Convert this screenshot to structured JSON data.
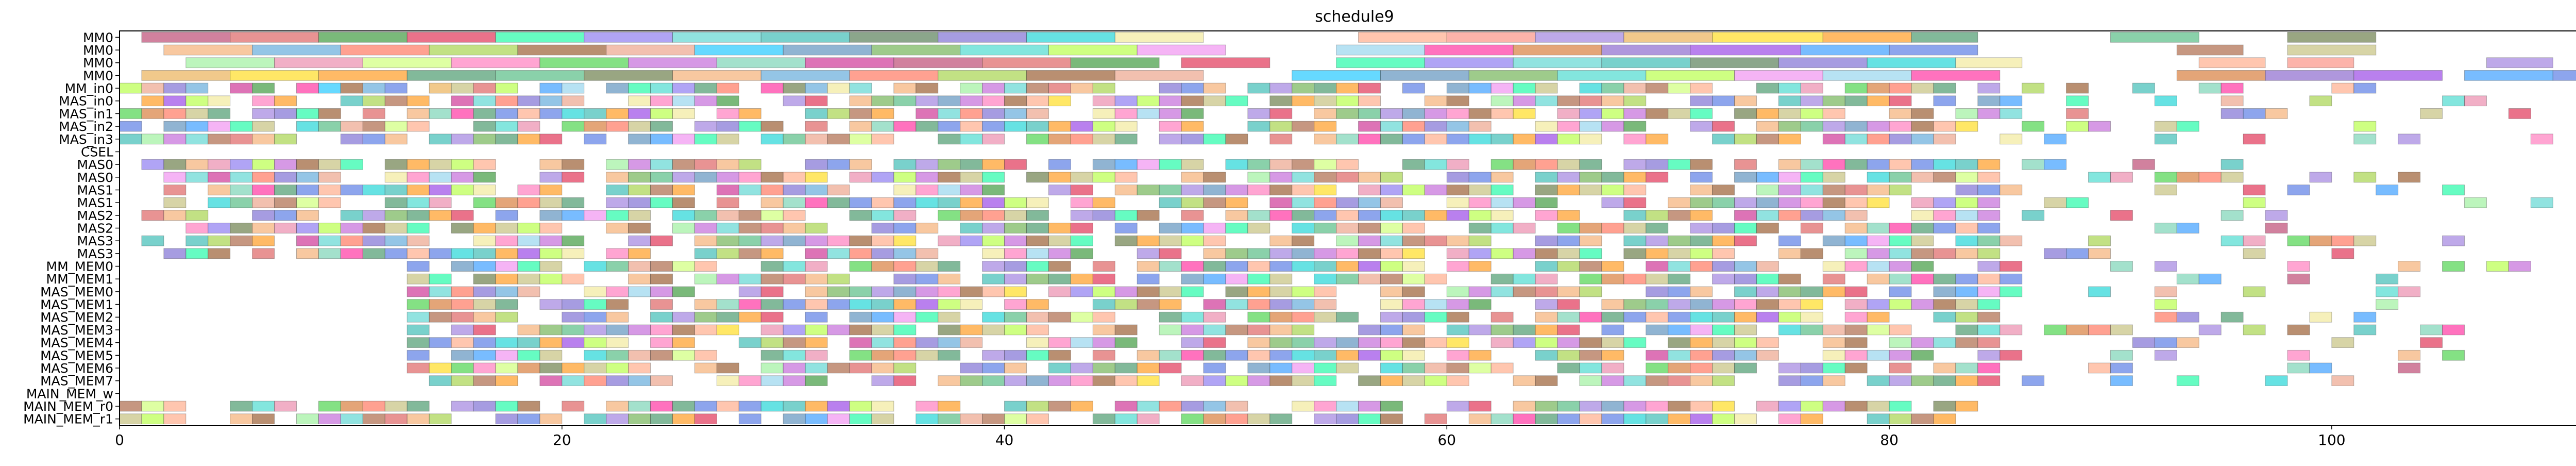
{
  "chart_data": {
    "type": "gantt",
    "title": "schedule9",
    "xlabel": "",
    "ylabel": "",
    "xlim": [
      0,
      114
    ],
    "xticks": [
      0,
      20,
      40,
      60,
      80,
      100
    ],
    "grid": false,
    "rows": [
      "MM0",
      "MM0",
      "MM0",
      "MM0",
      "MM_in0",
      "MAS_in0",
      "MAS_in1",
      "MAS_in2",
      "MAS_in3",
      "CSEL",
      "MAS0",
      "MAS0",
      "MAS1",
      "MAS1",
      "MAS2",
      "MAS2",
      "MAS3",
      "MAS3",
      "MM_MEM0",
      "MM_MEM1",
      "MAS_MEM0",
      "MAS_MEM1",
      "MAS_MEM2",
      "MAS_MEM3",
      "MAS_MEM4",
      "MAS_MEM5",
      "MAS_MEM6",
      "MAS_MEM7",
      "MAIN_MEM_w",
      "MAIN_MEM_r0",
      "MAIN_MEM_r1"
    ],
    "bar_alpha": 0.6,
    "palette": [
      "#b22d5e",
      "#e87aa0",
      "#7a52c7",
      "#5ea83d",
      "#4d9fd6",
      "#e8a53d",
      "#3d6b3d",
      "#d94b4b",
      "#c8ff66",
      "#8a2be2",
      "#30d5c8",
      "#ff6347",
      "#ffd700",
      "#6a5acd",
      "#228b22",
      "#ff69b4",
      "#1e90ff",
      "#adff2f",
      "#9acd32",
      "#ff8c00",
      "#00ced1",
      "#dc143c",
      "#32cd32",
      "#4169e1",
      "#ee82ee",
      "#8b4513",
      "#2e8b57",
      "#f0e68c",
      "#00fa9a",
      "#ba55d3",
      "#a0522d",
      "#87ceeb",
      "#e9967a",
      "#3cb371",
      "#ffa07a",
      "#7b68ee",
      "#66cdaa",
      "#bdb76b",
      "#ff1493",
      "#00bfff",
      "#556b2f",
      "#fa8072",
      "#48d1cc",
      "#c71585",
      "#90ee90",
      "#d2691e",
      "#4682b4",
      "#f4a460",
      "#9370db",
      "#20b2aa"
    ],
    "tasks": [
      {
        "row": 0,
        "start": 1,
        "end": 5
      },
      {
        "row": 0,
        "start": 5,
        "end": 9
      },
      {
        "row": 0,
        "start": 9,
        "end": 13
      },
      {
        "row": 0,
        "start": 13,
        "end": 17
      },
      {
        "row": 0,
        "start": 17,
        "end": 21
      },
      {
        "row": 0,
        "start": 21,
        "end": 25
      },
      {
        "row": 0,
        "start": 25,
        "end": 29
      },
      {
        "row": 0,
        "start": 29,
        "end": 33
      },
      {
        "row": 0,
        "start": 33,
        "end": 37
      },
      {
        "row": 0,
        "start": 37,
        "end": 41
      },
      {
        "row": 0,
        "start": 41,
        "end": 45
      },
      {
        "row": 0,
        "start": 45,
        "end": 49
      },
      {
        "row": 0,
        "start": 56,
        "end": 60
      },
      {
        "row": 0,
        "start": 60,
        "end": 64
      },
      {
        "row": 0,
        "start": 64,
        "end": 68
      },
      {
        "row": 0,
        "start": 68,
        "end": 72
      },
      {
        "row": 0,
        "start": 72,
        "end": 77
      },
      {
        "row": 0,
        "start": 77,
        "end": 81
      },
      {
        "row": 0,
        "start": 81,
        "end": 84
      },
      {
        "row": 0,
        "start": 90,
        "end": 94
      },
      {
        "row": 0,
        "start": 98,
        "end": 102
      },
      {
        "row": 1,
        "start": 2,
        "end": 6
      },
      {
        "row": 1,
        "start": 6,
        "end": 10
      },
      {
        "row": 1,
        "start": 10,
        "end": 14
      },
      {
        "row": 1,
        "start": 14,
        "end": 18
      },
      {
        "row": 1,
        "start": 18,
        "end": 22
      },
      {
        "row": 1,
        "start": 22,
        "end": 26
      },
      {
        "row": 1,
        "start": 26,
        "end": 30
      },
      {
        "row": 1,
        "start": 30,
        "end": 34
      },
      {
        "row": 1,
        "start": 34,
        "end": 38
      },
      {
        "row": 1,
        "start": 38,
        "end": 42
      },
      {
        "row": 1,
        "start": 42,
        "end": 46
      },
      {
        "row": 1,
        "start": 46,
        "end": 50
      },
      {
        "row": 1,
        "start": 55,
        "end": 59
      },
      {
        "row": 1,
        "start": 59,
        "end": 63
      },
      {
        "row": 1,
        "start": 63,
        "end": 67
      },
      {
        "row": 1,
        "start": 67,
        "end": 71
      },
      {
        "row": 1,
        "start": 71,
        "end": 76
      },
      {
        "row": 1,
        "start": 76,
        "end": 80
      },
      {
        "row": 1,
        "start": 80,
        "end": 84
      },
      {
        "row": 1,
        "start": 93,
        "end": 96
      },
      {
        "row": 1,
        "start": 98,
        "end": 102
      },
      {
        "row": 2,
        "start": 3,
        "end": 7
      },
      {
        "row": 2,
        "start": 7,
        "end": 11
      },
      {
        "row": 2,
        "start": 11,
        "end": 15
      },
      {
        "row": 2,
        "start": 15,
        "end": 19
      },
      {
        "row": 2,
        "start": 19,
        "end": 23
      },
      {
        "row": 2,
        "start": 23,
        "end": 27
      },
      {
        "row": 2,
        "start": 27,
        "end": 31
      },
      {
        "row": 2,
        "start": 31,
        "end": 35
      },
      {
        "row": 2,
        "start": 35,
        "end": 39
      },
      {
        "row": 2,
        "start": 39,
        "end": 43
      },
      {
        "row": 2,
        "start": 43,
        "end": 47
      },
      {
        "row": 2,
        "start": 48,
        "end": 52
      },
      {
        "row": 2,
        "start": 55,
        "end": 59
      },
      {
        "row": 2,
        "start": 59,
        "end": 63
      },
      {
        "row": 2,
        "start": 63,
        "end": 67
      },
      {
        "row": 2,
        "start": 67,
        "end": 71
      },
      {
        "row": 2,
        "start": 71,
        "end": 75
      },
      {
        "row": 2,
        "start": 75,
        "end": 79
      },
      {
        "row": 2,
        "start": 79,
        "end": 83
      },
      {
        "row": 2,
        "start": 83,
        "end": 86
      },
      {
        "row": 2,
        "start": 94,
        "end": 97
      },
      {
        "row": 2,
        "start": 98,
        "end": 101
      },
      {
        "row": 2,
        "start": 107,
        "end": 110
      },
      {
        "row": 3,
        "start": 1,
        "end": 5
      },
      {
        "row": 3,
        "start": 5,
        "end": 9
      },
      {
        "row": 3,
        "start": 9,
        "end": 13
      },
      {
        "row": 3,
        "start": 13,
        "end": 17
      },
      {
        "row": 3,
        "start": 17,
        "end": 21
      },
      {
        "row": 3,
        "start": 21,
        "end": 25
      },
      {
        "row": 3,
        "start": 25,
        "end": 29
      },
      {
        "row": 3,
        "start": 29,
        "end": 33
      },
      {
        "row": 3,
        "start": 33,
        "end": 37
      },
      {
        "row": 3,
        "start": 37,
        "end": 41
      },
      {
        "row": 3,
        "start": 41,
        "end": 45
      },
      {
        "row": 3,
        "start": 45,
        "end": 49
      },
      {
        "row": 3,
        "start": 53,
        "end": 57
      },
      {
        "row": 3,
        "start": 57,
        "end": 61
      },
      {
        "row": 3,
        "start": 61,
        "end": 65
      },
      {
        "row": 3,
        "start": 65,
        "end": 69
      },
      {
        "row": 3,
        "start": 69,
        "end": 73
      },
      {
        "row": 3,
        "start": 73,
        "end": 77
      },
      {
        "row": 3,
        "start": 77,
        "end": 81
      },
      {
        "row": 3,
        "start": 81,
        "end": 85
      },
      {
        "row": 3,
        "start": 93,
        "end": 97
      },
      {
        "row": 3,
        "start": 97,
        "end": 101
      },
      {
        "row": 3,
        "start": 101,
        "end": 105
      },
      {
        "row": 3,
        "start": 106,
        "end": 110
      },
      {
        "row": 3,
        "start": 110,
        "end": 113
      },
      {
        "row": 28,
        "start": 113,
        "end": 114
      }
    ],
    "dense_rows": [
      {
        "row": 4,
        "start": 0,
        "end": 105
      },
      {
        "row": 5,
        "start": 0,
        "end": 108
      },
      {
        "row": 6,
        "start": 0,
        "end": 110
      },
      {
        "row": 7,
        "start": 0,
        "end": 109
      },
      {
        "row": 8,
        "start": 0,
        "end": 110
      },
      {
        "row": 10,
        "start": 1,
        "end": 99
      },
      {
        "row": 11,
        "start": 2,
        "end": 104
      },
      {
        "row": 12,
        "start": 1,
        "end": 106
      },
      {
        "row": 13,
        "start": 2,
        "end": 112
      },
      {
        "row": 14,
        "start": 1,
        "end": 103
      },
      {
        "row": 15,
        "start": 3,
        "end": 98
      },
      {
        "row": 16,
        "start": 1,
        "end": 106
      },
      {
        "row": 17,
        "start": 2,
        "end": 102
      },
      {
        "row": 18,
        "start": 13,
        "end": 111
      },
      {
        "row": 19,
        "start": 13,
        "end": 110
      },
      {
        "row": 20,
        "start": 13,
        "end": 105
      },
      {
        "row": 21,
        "start": 13,
        "end": 105
      },
      {
        "row": 22,
        "start": 13,
        "end": 106
      },
      {
        "row": 23,
        "start": 13,
        "end": 106
      },
      {
        "row": 24,
        "start": 13,
        "end": 106
      },
      {
        "row": 25,
        "start": 13,
        "end": 106
      },
      {
        "row": 26,
        "start": 13,
        "end": 106
      },
      {
        "row": 27,
        "start": 13,
        "end": 101
      },
      {
        "row": 29,
        "start": 0,
        "end": 84
      },
      {
        "row": 30,
        "start": 0,
        "end": 84
      }
    ]
  }
}
